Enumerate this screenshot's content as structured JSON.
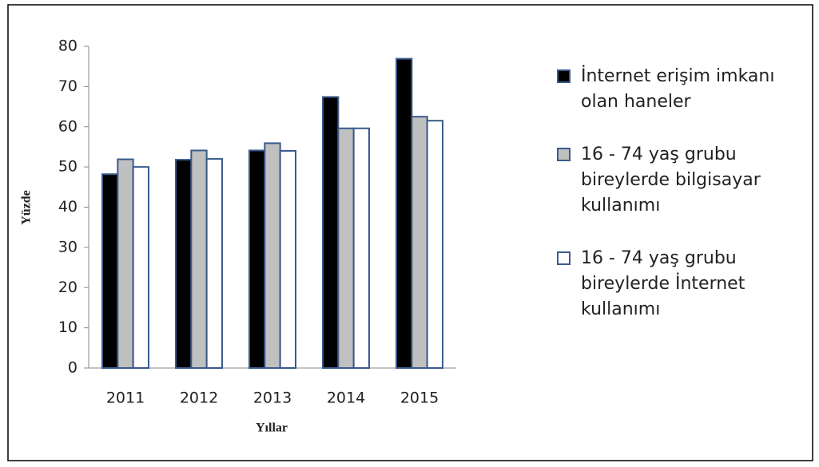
{
  "chart_data": {
    "type": "bar",
    "x_label": "Yıllar",
    "y_label": "Yüzde",
    "categories": [
      "2011",
      "2012",
      "2013",
      "2014",
      "2015"
    ],
    "series": [
      {
        "name": "İnternet erişim imkanı olan haneler",
        "color": "#000000",
        "values": [
          48.2,
          51.8,
          54.1,
          67.4,
          76.9
        ]
      },
      {
        "name": "16 - 74 yaş grubu bireylerde bilgisayar kullanımı",
        "color": "#c0c0c0",
        "values": [
          51.9,
          54.1,
          55.9,
          59.6,
          62.5
        ]
      },
      {
        "name": "16 - 74 yaş grubu bireylerde İnternet kullanımı",
        "color": "#ffffff",
        "values": [
          50.0,
          52.0,
          54.0,
          59.6,
          61.5
        ]
      }
    ],
    "ylim": [
      0,
      80
    ],
    "yticks": [
      0,
      10,
      20,
      30,
      40,
      50,
      60,
      70,
      80
    ],
    "grid": false,
    "legend": "right"
  }
}
